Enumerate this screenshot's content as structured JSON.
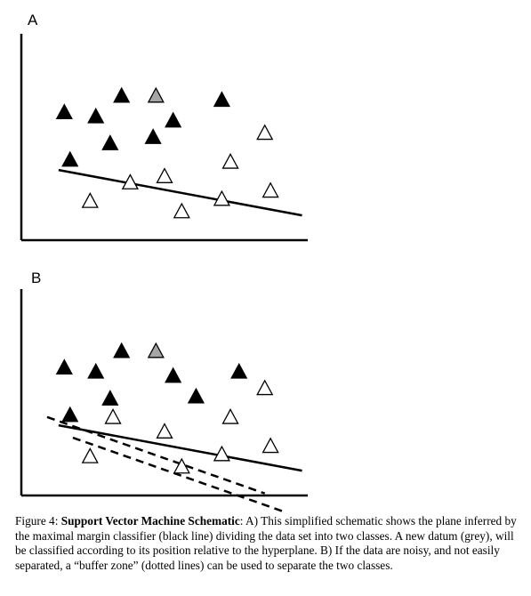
{
  "figure": {
    "panels": [
      {
        "label": "A",
        "hyperplane": {
          "from": [
            0.13,
            0.34
          ],
          "to": [
            0.98,
            0.12
          ]
        },
        "margins": [],
        "points": [
          {
            "x": 0.15,
            "y": 0.62,
            "class": "filled"
          },
          {
            "x": 0.26,
            "y": 0.6,
            "class": "filled"
          },
          {
            "x": 0.35,
            "y": 0.7,
            "class": "filled"
          },
          {
            "x": 0.47,
            "y": 0.7,
            "class": "new-grey"
          },
          {
            "x": 0.53,
            "y": 0.58,
            "class": "filled"
          },
          {
            "x": 0.7,
            "y": 0.68,
            "class": "filled"
          },
          {
            "x": 0.31,
            "y": 0.47,
            "class": "filled"
          },
          {
            "x": 0.46,
            "y": 0.5,
            "class": "filled"
          },
          {
            "x": 0.17,
            "y": 0.39,
            "class": "filled"
          },
          {
            "x": 0.85,
            "y": 0.52,
            "class": "hollow"
          },
          {
            "x": 0.73,
            "y": 0.38,
            "class": "hollow"
          },
          {
            "x": 0.38,
            "y": 0.28,
            "class": "hollow"
          },
          {
            "x": 0.5,
            "y": 0.31,
            "class": "hollow"
          },
          {
            "x": 0.24,
            "y": 0.19,
            "class": "hollow"
          },
          {
            "x": 0.87,
            "y": 0.24,
            "class": "hollow"
          },
          {
            "x": 0.7,
            "y": 0.2,
            "class": "hollow"
          },
          {
            "x": 0.56,
            "y": 0.14,
            "class": "hollow"
          }
        ]
      },
      {
        "label": "B",
        "hyperplane": {
          "from": [
            0.13,
            0.34
          ],
          "to": [
            0.98,
            0.12
          ]
        },
        "margins": [
          {
            "from": [
              0.09,
              0.38
            ],
            "to": [
              0.85,
              0.01
            ]
          },
          {
            "from": [
              0.18,
              0.28
            ],
            "to": [
              0.92,
              -0.08
            ]
          }
        ],
        "points": [
          {
            "x": 0.15,
            "y": 0.62,
            "class": "filled"
          },
          {
            "x": 0.26,
            "y": 0.6,
            "class": "filled"
          },
          {
            "x": 0.35,
            "y": 0.7,
            "class": "filled"
          },
          {
            "x": 0.47,
            "y": 0.7,
            "class": "new-grey"
          },
          {
            "x": 0.53,
            "y": 0.58,
            "class": "filled"
          },
          {
            "x": 0.76,
            "y": 0.6,
            "class": "filled"
          },
          {
            "x": 0.31,
            "y": 0.47,
            "class": "filled"
          },
          {
            "x": 0.61,
            "y": 0.48,
            "class": "filled"
          },
          {
            "x": 0.17,
            "y": 0.39,
            "class": "filled"
          },
          {
            "x": 0.85,
            "y": 0.52,
            "class": "hollow"
          },
          {
            "x": 0.73,
            "y": 0.38,
            "class": "hollow"
          },
          {
            "x": 0.32,
            "y": 0.38,
            "class": "hollow"
          },
          {
            "x": 0.5,
            "y": 0.31,
            "class": "hollow"
          },
          {
            "x": 0.24,
            "y": 0.19,
            "class": "hollow"
          },
          {
            "x": 0.87,
            "y": 0.24,
            "class": "hollow"
          },
          {
            "x": 0.7,
            "y": 0.2,
            "class": "hollow"
          },
          {
            "x": 0.56,
            "y": 0.14,
            "class": "hollow"
          }
        ]
      }
    ]
  },
  "caption": {
    "prefix": "Figure 4: ",
    "title": "Support Vector Machine Schematic",
    "body": ": A) This simplified schematic shows the plane inferred by the maximal margin classifier (black line) dividing the data set into two classes. A new datum (grey), will be classified according to its position relative to the hyperplane. B) If the data are noisy, and not easily separated, a “buffer zone” (dotted lines) can be used to separate the two classes."
  },
  "colors": {
    "filled": "#000000",
    "hollow": "#ffffff",
    "new-grey": "#a6a6a6",
    "stroke": "#000000"
  }
}
